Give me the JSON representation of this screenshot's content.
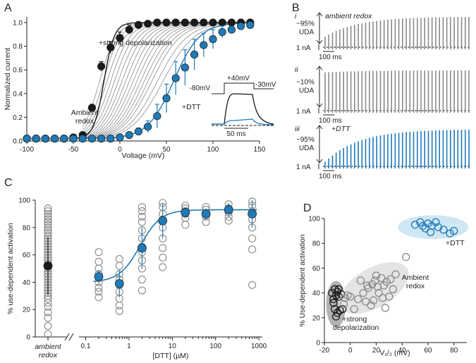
{
  "colors": {
    "black": "#1a1a1a",
    "gray": "#8a8a8a",
    "blue": "#1f7ab8",
    "blue_light": "#cfe6f3",
    "gray_fill": "#bdbdbd"
  },
  "panel_labels": {
    "a": "A",
    "b": "B",
    "c": "C",
    "d": "D"
  },
  "chart_data": [
    {
      "id": "A",
      "type": "line",
      "xlabel": "Voltage  (mV)",
      "ylabel": "Normalized current",
      "xlim": [
        -100,
        150
      ],
      "ylim": [
        0,
        1.0
      ],
      "xticks": [
        -100,
        -50,
        0,
        50,
        100,
        150
      ],
      "yticks": [
        0.0,
        0.2,
        0.4,
        0.6,
        0.8,
        1.0
      ],
      "annotations": {
        "strong": "+strong depolarization",
        "ambient_1": "Ambient",
        "ambient_2": "redox",
        "dtt": "+DTT"
      },
      "inset": {
        "v1": "-80mV",
        "v2": "+40mV",
        "v3": "-30mV",
        "scale": "50 ms"
      },
      "series": [
        {
          "name": "+strong depolarization",
          "color": "black",
          "x": [
            -100,
            -90,
            -80,
            -70,
            -60,
            -50,
            -40,
            -30,
            -20,
            -10,
            0,
            10,
            20,
            30,
            40,
            50,
            60,
            70,
            80,
            90,
            100,
            110,
            120,
            130,
            140
          ],
          "y": [
            0.02,
            0.02,
            0.02,
            0.02,
            0.02,
            0.03,
            0.05,
            0.28,
            0.63,
            0.79,
            0.87,
            0.94,
            0.98,
            0.99,
            1.0,
            1.0,
            1.0,
            1.0,
            1.0,
            1.0,
            1.0,
            1.0,
            1.0,
            1.0,
            1.0
          ],
          "err": [
            0,
            0,
            0,
            0,
            0,
            0,
            0.01,
            0.03,
            0.04,
            0.05,
            0.05,
            0.04,
            0.02,
            0.01,
            0,
            0,
            0,
            0,
            0,
            0,
            0,
            0,
            0,
            0,
            0
          ]
        },
        {
          "name": "+DTT",
          "color": "blue",
          "x": [
            -100,
            -90,
            -80,
            -70,
            -60,
            -50,
            -40,
            -30,
            -20,
            -10,
            0,
            10,
            20,
            30,
            40,
            50,
            60,
            70,
            80,
            90,
            100,
            110,
            120,
            130,
            140
          ],
          "y": [
            0.02,
            0.02,
            0.02,
            0.02,
            0.02,
            0.02,
            0.02,
            0.02,
            0.02,
            0.02,
            0.03,
            0.05,
            0.08,
            0.12,
            0.21,
            0.36,
            0.53,
            0.62,
            0.73,
            0.81,
            0.86,
            0.92,
            0.94,
            0.97,
            0.98
          ],
          "err": [
            0,
            0,
            0,
            0,
            0,
            0,
            0,
            0,
            0,
            0,
            0.01,
            0.02,
            0.03,
            0.05,
            0.1,
            0.12,
            0.14,
            0.15,
            0.13,
            0.1,
            0.08,
            0.05,
            0.03,
            0.02,
            0.01
          ]
        }
      ],
      "ambient_curves_v_half": [
        -22,
        -18,
        -14,
        -10,
        -6,
        -2,
        2,
        6,
        10,
        14,
        18,
        22,
        26,
        30,
        34,
        40,
        46
      ]
    },
    {
      "id": "B",
      "type": "line",
      "rows": [
        {
          "numeral": "i",
          "condition": "ambient redox",
          "uda": "~95%",
          "uda_unit": "UDA",
          "scale_current": "1 nA",
          "scale_time": "100 ms",
          "color": "gray",
          "start_frac": 0.35,
          "end_frac": 1.0
        },
        {
          "numeral": "ii",
          "condition": "",
          "uda": "~10%",
          "uda_unit": "UDA",
          "scale_current": "1 nA",
          "scale_time": "100 ms",
          "color": "gray",
          "start_frac": 0.95,
          "end_frac": 1.0
        },
        {
          "numeral": "iii",
          "condition": "+DTT",
          "uda": "~95%",
          "uda_unit": "UDA",
          "scale_current": "1 nA",
          "scale_time": "100 ms",
          "color": "blue",
          "start_frac": 0.12,
          "end_frac": 1.0
        }
      ],
      "pulses": 40
    },
    {
      "id": "C",
      "type": "scatter",
      "xlabel": "[DTT] (µM)",
      "ylabel": "% use-dependent activation",
      "ylim": [
        0,
        100
      ],
      "yticks": [
        0,
        20,
        40,
        60,
        80,
        100
      ],
      "xscale": "log",
      "xlim": [
        0.07,
        1200
      ],
      "xticks": [
        0.1,
        1,
        10,
        100,
        1000
      ],
      "xtick_labels": [
        "0.1",
        "1",
        "10",
        "100",
        "1000"
      ],
      "ambient_label_1": "ambient",
      "ambient_label_2": "redox",
      "ambient": {
        "mean": 52,
        "err": 21,
        "points": [
          2,
          8,
          14,
          18,
          22,
          25,
          28,
          30,
          32,
          34,
          36,
          38,
          40,
          42,
          44,
          46,
          48,
          50,
          52,
          54,
          56,
          58,
          60,
          62,
          64,
          66,
          68,
          70,
          72,
          74,
          76,
          78,
          80,
          82,
          84,
          86,
          88,
          90,
          92,
          94
        ]
      },
      "groups": [
        {
          "x": 0.2,
          "mean": 44,
          "err": 5,
          "points": [
            29,
            33,
            36,
            40,
            43,
            46,
            50,
            55,
            62
          ]
        },
        {
          "x": 0.6,
          "mean": 39,
          "err": 10,
          "points": [
            19,
            23,
            28,
            33,
            38,
            42,
            46,
            52,
            57
          ]
        },
        {
          "x": 2,
          "mean": 65,
          "err": 15,
          "points": [
            34,
            42,
            50,
            56,
            62,
            66,
            72,
            78,
            84,
            88,
            92,
            95
          ]
        },
        {
          "x": 6,
          "mean": 85,
          "err": 13,
          "points": [
            51,
            58,
            65,
            72,
            80,
            86,
            90,
            95,
            98
          ]
        },
        {
          "x": 20,
          "mean": 91,
          "err": 3,
          "points": [
            82,
            87,
            90,
            92,
            94,
            96
          ]
        },
        {
          "x": 60,
          "mean": 90,
          "err": 4,
          "points": [
            84,
            88,
            90,
            93,
            95
          ]
        },
        {
          "x": 200,
          "mean": 93,
          "err": 5,
          "points": [
            85,
            88,
            91,
            94,
            97
          ]
        },
        {
          "x": 700,
          "mean": 90,
          "err": 10,
          "points": [
            38,
            64,
            72,
            80,
            86,
            92,
            96,
            99
          ]
        }
      ],
      "fit": {
        "bottom": 40,
        "top": 93,
        "ec50": 1.8,
        "hill": 1.8,
        "x_from": 0.15,
        "x_to": 950
      }
    },
    {
      "id": "D",
      "type": "scatter",
      "xlabel": "V₁/₂  (mV)",
      "ylabel": "% Use-dependent activation",
      "xlim": [
        -20,
        90
      ],
      "ylim": [
        0,
        100
      ],
      "xticks": [
        -20,
        0,
        20,
        40,
        60,
        80
      ],
      "yticks": [
        0,
        20,
        40,
        60,
        80,
        100
      ],
      "annotations": {
        "strong_1": "+strong",
        "strong_2": "depolarization",
        "ambient_1": "Ambient",
        "ambient_2": "redox",
        "dtt": "+DTT"
      },
      "series": [
        {
          "name": "+strong depolarization",
          "color": "black",
          "points": [
            [
              -14,
              40
            ],
            [
              -12,
              43
            ],
            [
              -11,
              38
            ],
            [
              -13,
              35
            ],
            [
              -10,
              41
            ],
            [
              -9,
              37
            ],
            [
              -12,
              27
            ],
            [
              -10,
              24
            ],
            [
              -11,
              21
            ],
            [
              -8,
              26
            ],
            [
              -6,
              27
            ],
            [
              -13,
              32
            ],
            [
              -9,
              43
            ],
            [
              -7,
              39
            ]
          ]
        },
        {
          "name": "Ambient redox",
          "color": "gray",
          "points": [
            [
              -5,
              31
            ],
            [
              -2,
              38
            ],
            [
              -4,
              36
            ],
            [
              0,
              37
            ],
            [
              3,
              27
            ],
            [
              6,
              35
            ],
            [
              10,
              40
            ],
            [
              12,
              33
            ],
            [
              14,
              44
            ],
            [
              16,
              30
            ],
            [
              17,
              47
            ],
            [
              19,
              50
            ],
            [
              21,
              45
            ],
            [
              22,
              40
            ],
            [
              24,
              52
            ],
            [
              25,
              36
            ],
            [
              27,
              28
            ],
            [
              28,
              49
            ],
            [
              31,
              51
            ],
            [
              33,
              43
            ],
            [
              35,
              55
            ],
            [
              43,
              69
            ],
            [
              8,
              50
            ],
            [
              13,
              46
            ],
            [
              18,
              34
            ],
            [
              20,
              54
            ],
            [
              26,
              46
            ],
            [
              30,
              37
            ]
          ]
        },
        {
          "name": "+DTT",
          "color": "blue",
          "points": [
            [
              50,
              95
            ],
            [
              54,
              97
            ],
            [
              58,
              92
            ],
            [
              60,
              96
            ],
            [
              62,
              89
            ],
            [
              63,
              94
            ],
            [
              66,
              97
            ],
            [
              68,
              93
            ],
            [
              72,
              91
            ],
            [
              77,
              88
            ],
            [
              80,
              90
            ],
            [
              56,
              94
            ]
          ]
        }
      ]
    }
  ]
}
